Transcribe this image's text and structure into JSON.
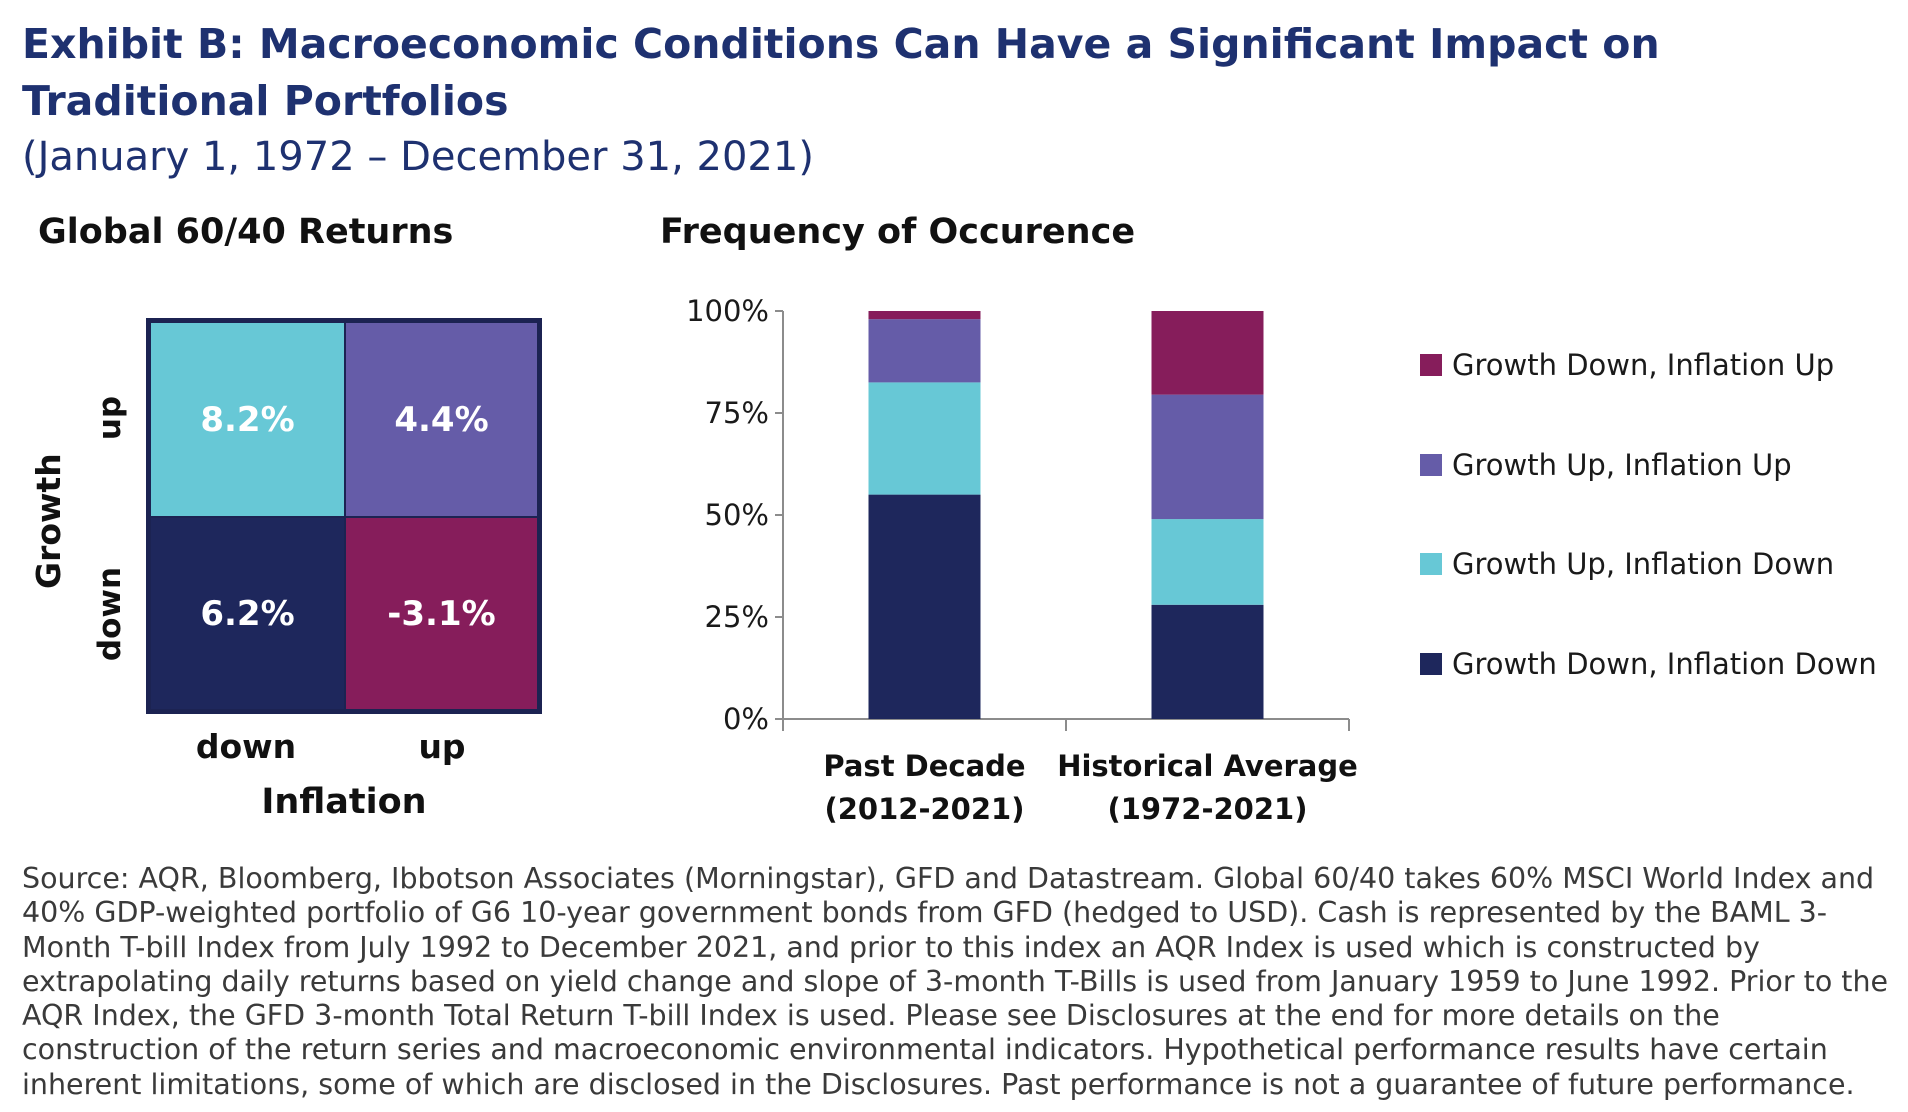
{
  "header": {
    "title": "Exhibit B: Macroeconomic Conditions Can Have a Significant Impact on Traditional Portfolios",
    "subtitle": "(January 1, 1972 – December 31, 2021)"
  },
  "colors": {
    "growth_down_inflation_up": "#861d5b",
    "growth_up_inflation_up": "#655ca8",
    "growth_up_inflation_down": "#67c8d6",
    "growth_down_inflation_down": "#1e275c",
    "title_navy": "#1e3170",
    "axis": "#8c8c8c"
  },
  "chart_data": [
    {
      "type": "heatmap",
      "title": "Global 60/40 Returns",
      "xlabel": "Inflation",
      "ylabel": "Growth",
      "x_categories": [
        "down",
        "up"
      ],
      "y_categories": [
        "up",
        "down"
      ],
      "cells": [
        {
          "growth": "up",
          "inflation": "down",
          "label": "8.2%",
          "value": 8.2
        },
        {
          "growth": "up",
          "inflation": "up",
          "label": "4.4%",
          "value": 4.4
        },
        {
          "growth": "down",
          "inflation": "down",
          "label": "6.2%",
          "value": 6.2
        },
        {
          "growth": "down",
          "inflation": "up",
          "label": "-3.1%",
          "value": -3.1
        }
      ]
    },
    {
      "type": "bar",
      "stacked": true,
      "title": "Frequency of Occurence",
      "categories": [
        {
          "line1": "Past Decade",
          "line2": "(2012-2021)"
        },
        {
          "line1": "Historical Average",
          "line2": "(1972-2021)"
        }
      ],
      "ylim": [
        0,
        100
      ],
      "yticks": [
        "0%",
        "25%",
        "50%",
        "75%",
        "100%"
      ],
      "series": [
        {
          "name": "Growth Down, Inflation Down",
          "values": [
            55,
            28
          ]
        },
        {
          "name": "Growth Up, Inflation Down",
          "values": [
            27.5,
            21
          ]
        },
        {
          "name": "Growth Up, Inflation Up",
          "values": [
            15.5,
            30.5
          ]
        },
        {
          "name": "Growth Down, Inflation Up",
          "values": [
            2,
            20.5
          ]
        }
      ],
      "legend_position": "right",
      "legend_order": [
        "Growth Down, Inflation Up",
        "Growth Up, Inflation Up",
        "Growth Up, Inflation Down",
        "Growth Down, Inflation Down"
      ]
    }
  ],
  "source": "Source: AQR, Bloomberg, Ibbotson Associates (Morningstar), GFD and Datastream. Global 60/40 takes 60% MSCI World Index and 40% GDP-weighted portfolio of G6 10-year government bonds from GFD (hedged to USD). Cash is represented by the BAML 3-Month T-bill Index from July 1992 to December 2021, and prior to this index an AQR Index is used which is constructed by extrapolating daily returns based on yield change and slope of 3-month T-Bills is used from January 1959 to June 1992. Prior to the AQR Index, the GFD 3-month Total Return T-bill Index is used. Please see Disclosures at the end for more details on the construction of the return series and macroeconomic environmental indicators. Hypothetical performance results have certain inherent limitations, some of which are disclosed in the Disclosures. Past performance is not a guarantee of future performance."
}
